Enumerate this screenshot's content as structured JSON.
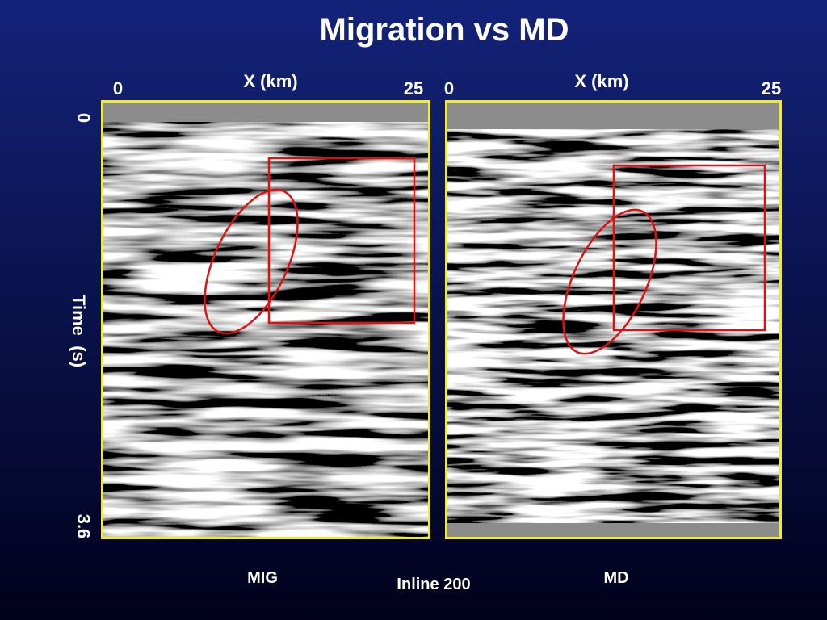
{
  "title": "Migration vs MD",
  "panels": [
    {
      "x_label": "X (km)",
      "x_start": "0",
      "x_end": "25",
      "caption": "MIG"
    },
    {
      "x_label": "X (km)",
      "x_start": "0",
      "x_end": "25",
      "caption": "MD"
    }
  ],
  "y_axis": {
    "label": "Time  (s)",
    "top": "0",
    "bottom": "3.6"
  },
  "footer": "Inline 200"
}
